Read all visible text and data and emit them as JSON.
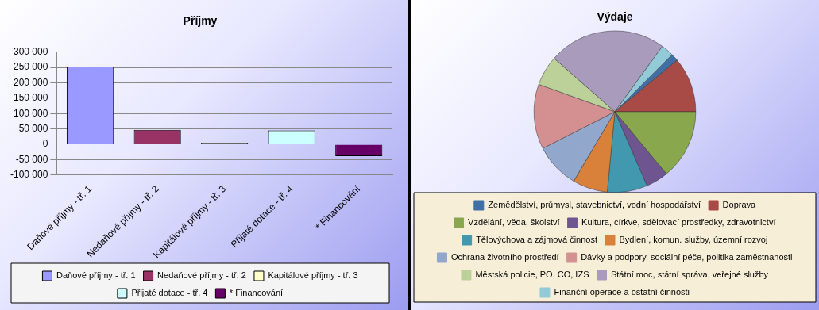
{
  "chart_data": [
    {
      "type": "bar",
      "title": "Příjmy",
      "categories": [
        "Daňové příjmy - tř. 1",
        "Nedaňové příjmy - tř. 2",
        "Kapitálové příjmy - tř. 3",
        "Přijaté dotace - tř. 4",
        "* Financování"
      ],
      "series": [
        {
          "name": "Daňové příjmy - tř. 1",
          "color": "#9999ff",
          "values": [
            253000,
            null,
            null,
            null,
            null
          ]
        },
        {
          "name": "Nedaňové příjmy - tř. 2",
          "color": "#993366",
          "values": [
            null,
            47000,
            null,
            null,
            null
          ]
        },
        {
          "name": "Kapitálové příjmy - tř. 3",
          "color": "#ffffcc",
          "values": [
            null,
            null,
            5000,
            null,
            null
          ]
        },
        {
          "name": "Přijaté dotace - tř. 4",
          "color": "#ccffff",
          "values": [
            null,
            null,
            null,
            45000,
            null
          ]
        },
        {
          "name": "* Financování",
          "color": "#660066",
          "values": [
            null,
            null,
            null,
            null,
            -39000
          ]
        }
      ],
      "ylim": [
        -100000,
        300000
      ],
      "yticks": [
        {
          "value": -100000,
          "label": "-100 000"
        },
        {
          "value": -50000,
          "label": "-50 000"
        },
        {
          "value": 0,
          "label": "0"
        },
        {
          "value": 50000,
          "label": "50 000"
        },
        {
          "value": 100000,
          "label": "100 000"
        },
        {
          "value": 150000,
          "label": "150 000"
        },
        {
          "value": 200000,
          "label": "200 000"
        },
        {
          "value": 250000,
          "label": "250 000"
        },
        {
          "value": 300000,
          "label": "300 000"
        }
      ],
      "grid": "y",
      "legend": "bottom"
    },
    {
      "type": "pie",
      "title": "Výdaje",
      "categories": [
        "Zemědělství, průmysl, stavebnictví, vodní hospodářství",
        "Doprava",
        "Vzdělání, věda, školství",
        "Kultura, církve, sdělovací prostředky, zdravotnictví",
        "Tělovýchova a zájmová činnost",
        "Bydlení, komun. služby, územní rozvoj",
        "Ochrana životního prostředí",
        "Dávky a podpory, sociální péče, politika zaměstnanosti",
        "Městská policie, PO, CO, IZS",
        "Státní moc, státní správa, veřejné služby",
        "Finanční operace a ostatní činnosti"
      ],
      "values": [
        1.5,
        11,
        14,
        4.5,
        8,
        7,
        9,
        13,
        6,
        23.5,
        2.5
      ],
      "colors": [
        "#3f6fa5",
        "#a84a46",
        "#89a84e",
        "#6f5590",
        "#4299af",
        "#d9813b",
        "#91a8cc",
        "#d49090",
        "#bcd19a",
        "#a89bbc",
        "#93cad8"
      ],
      "legend": "bottom"
    }
  ]
}
